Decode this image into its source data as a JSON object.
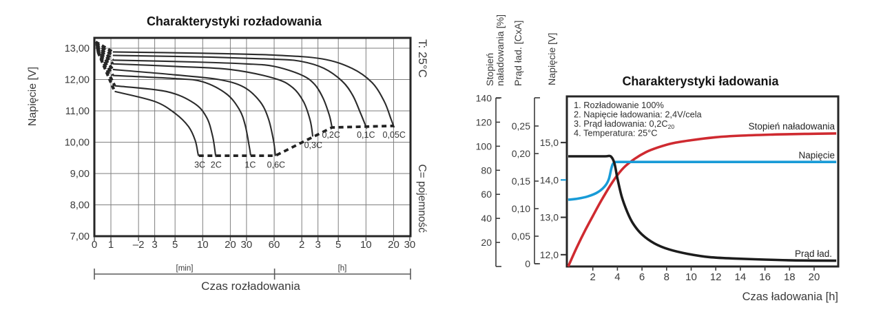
{
  "figure": {
    "background": "#ffffff",
    "text_color": "#3a3a3a",
    "line_color": "#262626",
    "grid_color": "#7e7e7e"
  },
  "chart_data": [
    {
      "type": "line",
      "title": "Charakterystyki rozładowania",
      "temperature_note": "T: 25°C",
      "capacity_note": "C= pojemność",
      "xlabel": "Czas rozładowania",
      "x_unit_min": "[min]",
      "x_unit_h": "[h]",
      "ylabel": "Napięcie [V]",
      "x_scale": "log-minutes",
      "xlim_minutes": [
        0,
        1800
      ],
      "ylim": [
        7,
        13.35
      ],
      "x_ticks": [
        {
          "t": 0,
          "label": "0"
        },
        {
          "t": 1,
          "label": "1"
        },
        {
          "t": 2,
          "label": "–2"
        },
        {
          "t": 3,
          "label": "3"
        },
        {
          "t": 5,
          "label": "5"
        },
        {
          "t": 10,
          "label": "10"
        },
        {
          "t": 20,
          "label": "20"
        },
        {
          "t": 30,
          "label": "30"
        },
        {
          "t": 60,
          "label": "60"
        },
        {
          "t": 120,
          "label": "2"
        },
        {
          "t": 180,
          "label": "3"
        },
        {
          "t": 300,
          "label": "5"
        },
        {
          "t": 600,
          "label": "10"
        },
        {
          "t": 1200,
          "label": "20"
        },
        {
          "t": 1800,
          "label": "30"
        }
      ],
      "y_ticks": [
        {
          "v": 13,
          "label": "13,00"
        },
        {
          "v": 12,
          "label": "12,00"
        },
        {
          "v": 11,
          "label": "11,00"
        },
        {
          "v": 10,
          "label": "10,00"
        },
        {
          "v": 9,
          "label": "9,00"
        },
        {
          "v": 8,
          "label": "8,00"
        },
        {
          "v": 7,
          "label": "7,00"
        }
      ],
      "series": [
        {
          "name": "0,05C",
          "label_pos": [
            1216,
            10.23
          ],
          "points": [
            [
              1.05,
              12.88
            ],
            [
              10,
              12.84
            ],
            [
              60,
              12.78
            ],
            [
              200,
              12.66
            ],
            [
              420,
              12.36
            ],
            [
              700,
              11.9
            ],
            [
              950,
              11.3
            ],
            [
              1120,
              10.75
            ],
            [
              1215,
              10.47
            ]
          ]
        },
        {
          "name": "0,1C",
          "label_pos": [
            600,
            10.23
          ],
          "points": [
            [
              1.05,
              12.77
            ],
            [
              10,
              12.72
            ],
            [
              60,
              12.65
            ],
            [
              118,
              12.58
            ],
            [
              208,
              12.36
            ],
            [
              330,
              11.95
            ],
            [
              430,
              11.5
            ],
            [
              520,
              10.95
            ],
            [
              600,
              10.5
            ],
            [
              612,
              10.47
            ]
          ]
        },
        {
          "name": "0,2C",
          "label_pos": [
            250,
            10.23
          ],
          "points": [
            [
              1.05,
              12.62
            ],
            [
              8,
              12.56
            ],
            [
              30,
              12.5
            ],
            [
              60,
              12.42
            ],
            [
              118,
              12.15
            ],
            [
              165,
              11.85
            ],
            [
              205,
              11.4
            ],
            [
              240,
              10.85
            ],
            [
              256,
              10.47
            ]
          ]
        },
        {
          "name": "0,3C",
          "label_pos": [
            160,
            9.9
          ],
          "points": [
            [
              1.05,
              12.5
            ],
            [
              5,
              12.42
            ],
            [
              20,
              12.32
            ],
            [
              60,
              12.04
            ],
            [
              95,
              11.75
            ],
            [
              125,
              11.3
            ],
            [
              148,
              10.7
            ],
            [
              158,
              10.18
            ]
          ]
        },
        {
          "name": "0,6C",
          "label_pos": [
            63,
            9.28
          ],
          "points": [
            [
              1.05,
              12.32
            ],
            [
              5,
              12.15
            ],
            [
              15,
              12.0
            ],
            [
              28,
              11.76
            ],
            [
              42,
              11.3
            ],
            [
              52,
              10.75
            ],
            [
              59,
              10.05
            ],
            [
              62,
              9.56
            ]
          ]
        },
        {
          "name": "1C",
          "label_pos": [
            33,
            9.28
          ],
          "points": [
            [
              1.05,
              12.13
            ],
            [
              5,
              12.03
            ],
            [
              10,
              11.93
            ],
            [
              18,
              11.55
            ],
            [
              25,
              11.05
            ],
            [
              29,
              10.55
            ],
            [
              32,
              9.9
            ],
            [
              33.3,
              9.58
            ]
          ]
        },
        {
          "name": "2C",
          "label_pos": [
            14,
            9.28
          ],
          "points": [
            [
              1.1,
              11.8
            ],
            [
              4,
              11.62
            ],
            [
              8,
              11.25
            ],
            [
              11,
              10.8
            ],
            [
              12.8,
              10.2
            ],
            [
              13.8,
              9.6
            ],
            [
              14,
              9.57
            ]
          ]
        },
        {
          "name": "3C",
          "label_pos": [
            9.3,
            9.28
          ],
          "points": [
            [
              1.1,
              11.62
            ],
            [
              3,
              11.3
            ],
            [
              5,
              10.92
            ],
            [
              7,
              10.5
            ],
            [
              8.3,
              10.05
            ],
            [
              8.9,
              9.62
            ],
            [
              9.1,
              9.57
            ]
          ]
        }
      ],
      "cutoff_dashed": [
        [
          9.1,
          9.57
        ],
        [
          62,
          9.57
        ],
        [
          256,
          10.47
        ],
        [
          1210,
          10.52
        ]
      ]
    },
    {
      "type": "line",
      "title": "Charakterystyki ładowania",
      "xlabel": "Czas ładowania [h]",
      "xlim_hours": [
        0,
        21.85
      ],
      "x_ticks": [
        2,
        4,
        6,
        8,
        10,
        12,
        14,
        16,
        18,
        20
      ],
      "axes": [
        {
          "id": "soc",
          "label_lines": [
            "Stopień",
            "naładowania [%]"
          ],
          "range": [
            0,
            140
          ],
          "ticks": [
            {
              "v": 140,
              "label": "140"
            },
            {
              "v": 120,
              "label": "120"
            },
            {
              "v": 100,
              "label": "100"
            },
            {
              "v": 80,
              "label": "80"
            },
            {
              "v": 60,
              "label": "60"
            },
            {
              "v": 40,
              "label": "40"
            },
            {
              "v": 20,
              "label": "20"
            }
          ]
        },
        {
          "id": "amp",
          "label_lines": [
            "Prąd ład.  [CxA]"
          ],
          "range": [
            0,
            0.27
          ],
          "ticks": [
            {
              "v": 0.25,
              "label": "0,25"
            },
            {
              "v": 0.2,
              "label": "0,20"
            },
            {
              "v": 0.15,
              "label": "0,15"
            },
            {
              "v": 0.1,
              "label": "0,10"
            },
            {
              "v": 0.05,
              "label": "0,05"
            },
            {
              "v": 0,
              "label": "0"
            }
          ]
        },
        {
          "id": "volt",
          "label_lines": [
            "Napięcie  [V]"
          ],
          "range": [
            11.75,
            15.5
          ],
          "ticks": [
            {
              "v": 15,
              "label": "15,0",
              "color": "#3a3a3a"
            },
            {
              "v": 14,
              "label": "14,0",
              "color": "#189bd7"
            },
            {
              "v": 13,
              "label": "13,0",
              "color": "#3a3a3a"
            },
            {
              "v": 12,
              "label": "12,0",
              "color": "#3a3a3a"
            }
          ]
        }
      ],
      "annotations": [
        {
          "text": "1. Rozładowanie 100%"
        },
        {
          "text": "2. Napięcie ładowania: 2,4V/cela"
        },
        {
          "text": "3. Prąd ładowania: 0,2C",
          "sub": "20"
        },
        {
          "text": "4. Temperatura: 25°C"
        }
      ],
      "series": [
        {
          "name": "Stopień naładowania",
          "axis": "soc",
          "color": "#cf2a30",
          "label": {
            "text": "Stopień naładowania",
            "x": 1212,
            "y": 188,
            "anchor": "end"
          },
          "points": [
            [
              0,
              0
            ],
            [
              0.7,
              16
            ],
            [
              1.4,
              30.5
            ],
            [
              2,
              42
            ],
            [
              2.7,
              55
            ],
            [
              3.4,
              67
            ],
            [
              4,
              76
            ],
            [
              4.6,
              83
            ],
            [
              5.4,
              89.5
            ],
            [
              6.3,
              95
            ],
            [
              7.3,
              99
            ],
            [
              8.5,
              102.5
            ],
            [
              10,
              105
            ],
            [
              12,
              107.5
            ],
            [
              14,
              108.8
            ],
            [
              17,
              109.8
            ],
            [
              19.5,
              110.3
            ],
            [
              21.8,
              110.6
            ]
          ]
        },
        {
          "name": "Napięcie",
          "axis": "volt",
          "color": "#189bd7",
          "label": {
            "text": "Napięcie",
            "x": 1212,
            "y": 230,
            "anchor": "end"
          },
          "points": [
            [
              0,
              13.47
            ],
            [
              0.8,
              13.5
            ],
            [
              1.6,
              13.56
            ],
            [
              2.4,
              13.67
            ],
            [
              3.0,
              13.84
            ],
            [
              3.3,
              14.02
            ],
            [
              3.5,
              14.3
            ],
            [
              3.62,
              14.42
            ],
            [
              3.8,
              14.47
            ],
            [
              4.2,
              14.48
            ],
            [
              8,
              14.48
            ],
            [
              14,
              14.48
            ],
            [
              21.8,
              14.48
            ]
          ]
        },
        {
          "name": "Prąd ład.",
          "axis": "amp",
          "color": "#1c1c1c",
          "label": {
            "text": "Prąd ład.",
            "x": 1208,
            "y": 373,
            "anchor": "end"
          },
          "points": [
            [
              0,
              0.195
            ],
            [
              1.5,
              0.195
            ],
            [
              3.0,
              0.195
            ],
            [
              3.45,
              0.195
            ],
            [
              3.75,
              0.183
            ],
            [
              4,
              0.155
            ],
            [
              4.35,
              0.122
            ],
            [
              4.8,
              0.094
            ],
            [
              5.3,
              0.072
            ],
            [
              6,
              0.053
            ],
            [
              7,
              0.037
            ],
            [
              8.2,
              0.026
            ],
            [
              9.7,
              0.018
            ],
            [
              11.5,
              0.012
            ],
            [
              13.5,
              0.0095
            ],
            [
              16,
              0.0075
            ],
            [
              18.5,
              0.006
            ],
            [
              21.8,
              0.0055
            ]
          ]
        }
      ]
    }
  ]
}
